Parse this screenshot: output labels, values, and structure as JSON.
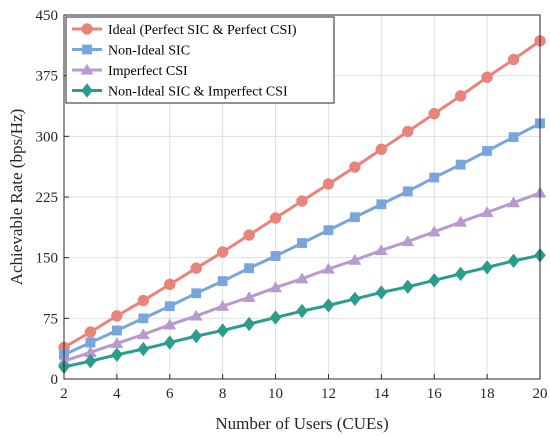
{
  "chart_data": {
    "type": "line",
    "xlabel": "Number of Users (CUEs)",
    "ylabel": "Achievable Rate (bps/Hz)",
    "xlim": [
      2,
      20
    ],
    "ylim": [
      0,
      450
    ],
    "xticks": [
      2,
      4,
      6,
      8,
      10,
      12,
      14,
      16,
      18,
      20
    ],
    "yticks": [
      0,
      75,
      150,
      225,
      300,
      375,
      450
    ],
    "grid": true,
    "legend_position": "top-left",
    "x": [
      2,
      3,
      4,
      5,
      6,
      7,
      8,
      9,
      10,
      11,
      12,
      13,
      14,
      15,
      16,
      17,
      18,
      19,
      20
    ],
    "series": [
      {
        "name": "Ideal (Perfect SIC & Perfect CSI)",
        "color": "#E8847A",
        "marker": "circle",
        "values": [
          39,
          58,
          78,
          97,
          117,
          137,
          157,
          178,
          199,
          220,
          241,
          262,
          284,
          306,
          328,
          350,
          373,
          395,
          418
        ]
      },
      {
        "name": "Non-Ideal SIC",
        "color": "#78A6DC",
        "marker": "square",
        "values": [
          30,
          45,
          60,
          75,
          90,
          106,
          121,
          137,
          152,
          168,
          184,
          200,
          216,
          232,
          249,
          265,
          282,
          299,
          316
        ]
      },
      {
        "name": "Imperfect CSI",
        "color": "#B89AD0",
        "marker": "triangle",
        "values": [
          22,
          33,
          44,
          55,
          67,
          78,
          90,
          101,
          113,
          124,
          136,
          147,
          159,
          170,
          182,
          194,
          206,
          218,
          230
        ]
      },
      {
        "name": "Non-Ideal SIC & Imperfect CSI",
        "color": "#2A9D8C",
        "marker": "diamond",
        "values": [
          15,
          22,
          30,
          37,
          45,
          53,
          60,
          68,
          76,
          84,
          91,
          99,
          107,
          114,
          122,
          130,
          138,
          146,
          153
        ]
      }
    ]
  }
}
